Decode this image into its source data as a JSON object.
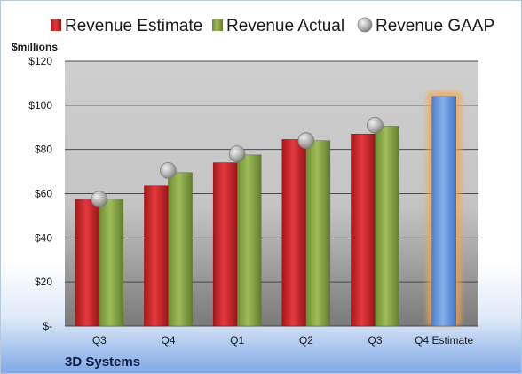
{
  "chart_data": {
    "type": "bar",
    "title": "",
    "unit_label": "$millions",
    "company": "3D Systems",
    "categories": [
      "Q3",
      "Q4",
      "Q1",
      "Q2",
      "Q3",
      "Q4 Estimate"
    ],
    "ylim": [
      0,
      120
    ],
    "yticks": [
      0,
      20,
      40,
      60,
      80,
      100,
      120
    ],
    "ytick_labels": [
      "$-",
      "$20",
      "$40",
      "$60",
      "$80",
      "$100",
      "$120"
    ],
    "grid": true,
    "legend_position": "top",
    "series": [
      {
        "name": "Revenue Estimate",
        "type": "bar",
        "color": "#d42a2e",
        "values": [
          57.5,
          63.5,
          74,
          84.5,
          87,
          null
        ]
      },
      {
        "name": "Revenue Actual",
        "type": "bar",
        "color": "#8fb04a",
        "values": [
          57.5,
          69.5,
          77.5,
          84,
          90.5,
          null
        ]
      },
      {
        "name": "Revenue GAAP",
        "type": "marker",
        "color": "#a0a0a0",
        "values": [
          57.5,
          70.5,
          78,
          84,
          91,
          null
        ]
      },
      {
        "name": "Q4 Estimate",
        "type": "bar",
        "color": "#6e9be0",
        "values": [
          null,
          null,
          null,
          null,
          null,
          104
        ]
      }
    ]
  }
}
